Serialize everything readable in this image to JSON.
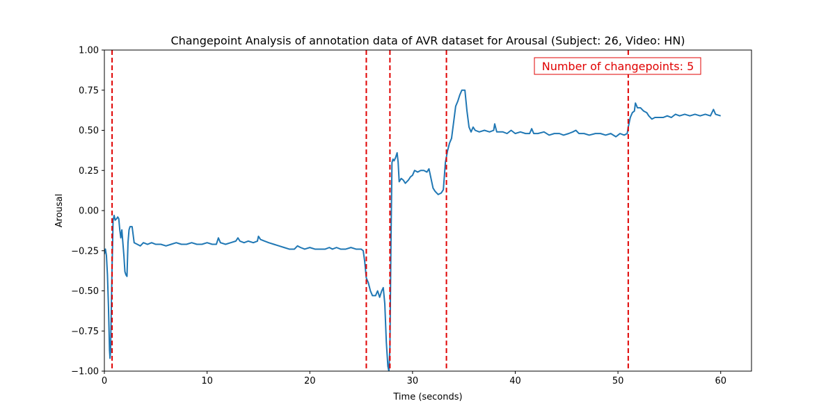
{
  "chart_data": {
    "type": "line",
    "title": "Changepoint Analysis of annotation data of AVR dataset for Arousal (Subject: 26, Video: HN)",
    "xlabel": "Time (seconds)",
    "ylabel": "Arousal",
    "xlim": [
      0,
      63
    ],
    "ylim": [
      -1.0,
      1.0
    ],
    "x_ticks": [
      0,
      10,
      20,
      30,
      40,
      50,
      60
    ],
    "x_tick_labels": [
      "0",
      "10",
      "20",
      "30",
      "40",
      "50",
      "60"
    ],
    "y_ticks": [
      -1.0,
      -0.75,
      -0.5,
      -0.25,
      0.0,
      0.25,
      0.5,
      0.75,
      1.0
    ],
    "y_tick_labels": [
      "−1.00",
      "−0.75",
      "−0.50",
      "−0.25",
      "0.00",
      "0.25",
      "0.50",
      "0.75",
      "1.00"
    ],
    "grid": false,
    "line_color": "#1f77b4",
    "changepoint_color": "#e00000",
    "changepoints": [
      0.75,
      25.5,
      27.8,
      33.3,
      51.0
    ],
    "annotation_text": "Number of changepoints: 5",
    "annotation_position": "top-right",
    "series": [
      {
        "values": [
          [
            0.0,
            -0.27
          ],
          [
            0.1,
            -0.24
          ],
          [
            0.2,
            -0.28
          ],
          [
            0.3,
            -0.4
          ],
          [
            0.4,
            -0.6
          ],
          [
            0.5,
            -0.87
          ],
          [
            0.55,
            -0.92
          ],
          [
            0.6,
            -0.88
          ],
          [
            0.65,
            -0.7
          ],
          [
            0.75,
            -0.35
          ],
          [
            0.85,
            -0.06
          ],
          [
            0.95,
            -0.03
          ],
          [
            1.05,
            -0.06
          ],
          [
            1.2,
            -0.05
          ],
          [
            1.3,
            -0.04
          ],
          [
            1.4,
            -0.05
          ],
          [
            1.5,
            -0.12
          ],
          [
            1.6,
            -0.17
          ],
          [
            1.7,
            -0.12
          ],
          [
            1.8,
            -0.2
          ],
          [
            1.9,
            -0.28
          ],
          [
            2.0,
            -0.38
          ],
          [
            2.1,
            -0.4
          ],
          [
            2.2,
            -0.41
          ],
          [
            2.3,
            -0.2
          ],
          [
            2.4,
            -0.12
          ],
          [
            2.5,
            -0.1
          ],
          [
            2.7,
            -0.1
          ],
          [
            2.8,
            -0.15
          ],
          [
            2.9,
            -0.2
          ],
          [
            3.2,
            -0.21
          ],
          [
            3.5,
            -0.22
          ],
          [
            3.8,
            -0.2
          ],
          [
            4.2,
            -0.21
          ],
          [
            4.6,
            -0.2
          ],
          [
            5.0,
            -0.21
          ],
          [
            5.5,
            -0.21
          ],
          [
            6.0,
            -0.22
          ],
          [
            6.5,
            -0.21
          ],
          [
            7.0,
            -0.2
          ],
          [
            7.5,
            -0.21
          ],
          [
            8.0,
            -0.21
          ],
          [
            8.5,
            -0.2
          ],
          [
            9.0,
            -0.21
          ],
          [
            9.5,
            -0.21
          ],
          [
            10.0,
            -0.2
          ],
          [
            10.5,
            -0.21
          ],
          [
            10.9,
            -0.21
          ],
          [
            11.1,
            -0.17
          ],
          [
            11.3,
            -0.2
          ],
          [
            11.8,
            -0.21
          ],
          [
            12.3,
            -0.2
          ],
          [
            12.8,
            -0.19
          ],
          [
            13.0,
            -0.17
          ],
          [
            13.2,
            -0.19
          ],
          [
            13.6,
            -0.2
          ],
          [
            14.0,
            -0.19
          ],
          [
            14.5,
            -0.2
          ],
          [
            14.9,
            -0.19
          ],
          [
            15.0,
            -0.16
          ],
          [
            15.2,
            -0.18
          ],
          [
            15.6,
            -0.19
          ],
          [
            16.0,
            -0.2
          ],
          [
            16.5,
            -0.21
          ],
          [
            17.0,
            -0.22
          ],
          [
            17.5,
            -0.23
          ],
          [
            18.0,
            -0.24
          ],
          [
            18.5,
            -0.24
          ],
          [
            18.8,
            -0.22
          ],
          [
            19.1,
            -0.23
          ],
          [
            19.5,
            -0.24
          ],
          [
            20.0,
            -0.23
          ],
          [
            20.5,
            -0.24
          ],
          [
            21.0,
            -0.24
          ],
          [
            21.5,
            -0.24
          ],
          [
            21.9,
            -0.23
          ],
          [
            22.2,
            -0.24
          ],
          [
            22.6,
            -0.23
          ],
          [
            23.0,
            -0.24
          ],
          [
            23.5,
            -0.24
          ],
          [
            24.0,
            -0.23
          ],
          [
            24.5,
            -0.24
          ],
          [
            25.0,
            -0.24
          ],
          [
            25.2,
            -0.25
          ],
          [
            25.35,
            -0.32
          ],
          [
            25.5,
            -0.42
          ],
          [
            25.7,
            -0.45
          ],
          [
            25.9,
            -0.5
          ],
          [
            26.1,
            -0.53
          ],
          [
            26.4,
            -0.53
          ],
          [
            26.6,
            -0.5
          ],
          [
            26.8,
            -0.54
          ],
          [
            27.0,
            -0.5
          ],
          [
            27.15,
            -0.48
          ],
          [
            27.3,
            -0.58
          ],
          [
            27.45,
            -0.82
          ],
          [
            27.6,
            -0.97
          ],
          [
            27.7,
            -1.0
          ],
          [
            27.8,
            -0.85
          ],
          [
            27.9,
            -0.2
          ],
          [
            28.0,
            0.3
          ],
          [
            28.1,
            0.32
          ],
          [
            28.2,
            0.31
          ],
          [
            28.35,
            0.33
          ],
          [
            28.5,
            0.36
          ],
          [
            28.6,
            0.3
          ],
          [
            28.7,
            0.18
          ],
          [
            28.9,
            0.2
          ],
          [
            29.1,
            0.19
          ],
          [
            29.3,
            0.17
          ],
          [
            29.6,
            0.19
          ],
          [
            29.8,
            0.21
          ],
          [
            30.0,
            0.22
          ],
          [
            30.2,
            0.25
          ],
          [
            30.5,
            0.24
          ],
          [
            30.8,
            0.25
          ],
          [
            31.1,
            0.25
          ],
          [
            31.4,
            0.24
          ],
          [
            31.6,
            0.26
          ],
          [
            31.8,
            0.2
          ],
          [
            32.0,
            0.14
          ],
          [
            32.2,
            0.12
          ],
          [
            32.5,
            0.1
          ],
          [
            32.8,
            0.11
          ],
          [
            33.0,
            0.13
          ],
          [
            33.2,
            0.3
          ],
          [
            33.4,
            0.37
          ],
          [
            33.6,
            0.42
          ],
          [
            33.8,
            0.45
          ],
          [
            34.0,
            0.55
          ],
          [
            34.2,
            0.65
          ],
          [
            34.4,
            0.68
          ],
          [
            34.6,
            0.72
          ],
          [
            34.8,
            0.75
          ],
          [
            35.1,
            0.75
          ],
          [
            35.3,
            0.62
          ],
          [
            35.5,
            0.52
          ],
          [
            35.7,
            0.49
          ],
          [
            35.9,
            0.52
          ],
          [
            36.1,
            0.5
          ],
          [
            36.5,
            0.49
          ],
          [
            37.0,
            0.5
          ],
          [
            37.5,
            0.49
          ],
          [
            37.9,
            0.5
          ],
          [
            38.0,
            0.54
          ],
          [
            38.2,
            0.49
          ],
          [
            38.8,
            0.49
          ],
          [
            39.2,
            0.48
          ],
          [
            39.6,
            0.5
          ],
          [
            40.0,
            0.48
          ],
          [
            40.5,
            0.49
          ],
          [
            41.0,
            0.48
          ],
          [
            41.4,
            0.48
          ],
          [
            41.6,
            0.51
          ],
          [
            41.8,
            0.48
          ],
          [
            42.2,
            0.48
          ],
          [
            42.8,
            0.49
          ],
          [
            43.3,
            0.47
          ],
          [
            43.8,
            0.48
          ],
          [
            44.3,
            0.48
          ],
          [
            44.7,
            0.47
          ],
          [
            45.2,
            0.48
          ],
          [
            45.6,
            0.49
          ],
          [
            45.9,
            0.5
          ],
          [
            46.2,
            0.48
          ],
          [
            46.7,
            0.48
          ],
          [
            47.2,
            0.47
          ],
          [
            47.8,
            0.48
          ],
          [
            48.3,
            0.48
          ],
          [
            48.8,
            0.47
          ],
          [
            49.3,
            0.48
          ],
          [
            49.8,
            0.46
          ],
          [
            50.2,
            0.48
          ],
          [
            50.6,
            0.47
          ],
          [
            50.9,
            0.48
          ],
          [
            51.0,
            0.52
          ],
          [
            51.2,
            0.58
          ],
          [
            51.4,
            0.61
          ],
          [
            51.6,
            0.62
          ],
          [
            51.7,
            0.67
          ],
          [
            51.9,
            0.64
          ],
          [
            52.2,
            0.64
          ],
          [
            52.5,
            0.62
          ],
          [
            52.8,
            0.61
          ],
          [
            53.0,
            0.59
          ],
          [
            53.3,
            0.57
          ],
          [
            53.6,
            0.58
          ],
          [
            54.0,
            0.58
          ],
          [
            54.4,
            0.58
          ],
          [
            54.8,
            0.59
          ],
          [
            55.2,
            0.58
          ],
          [
            55.6,
            0.6
          ],
          [
            56.0,
            0.59
          ],
          [
            56.5,
            0.6
          ],
          [
            57.0,
            0.59
          ],
          [
            57.5,
            0.6
          ],
          [
            58.0,
            0.59
          ],
          [
            58.5,
            0.6
          ],
          [
            59.0,
            0.59
          ],
          [
            59.3,
            0.63
          ],
          [
            59.5,
            0.6
          ],
          [
            60.0,
            0.59
          ]
        ]
      }
    ]
  }
}
